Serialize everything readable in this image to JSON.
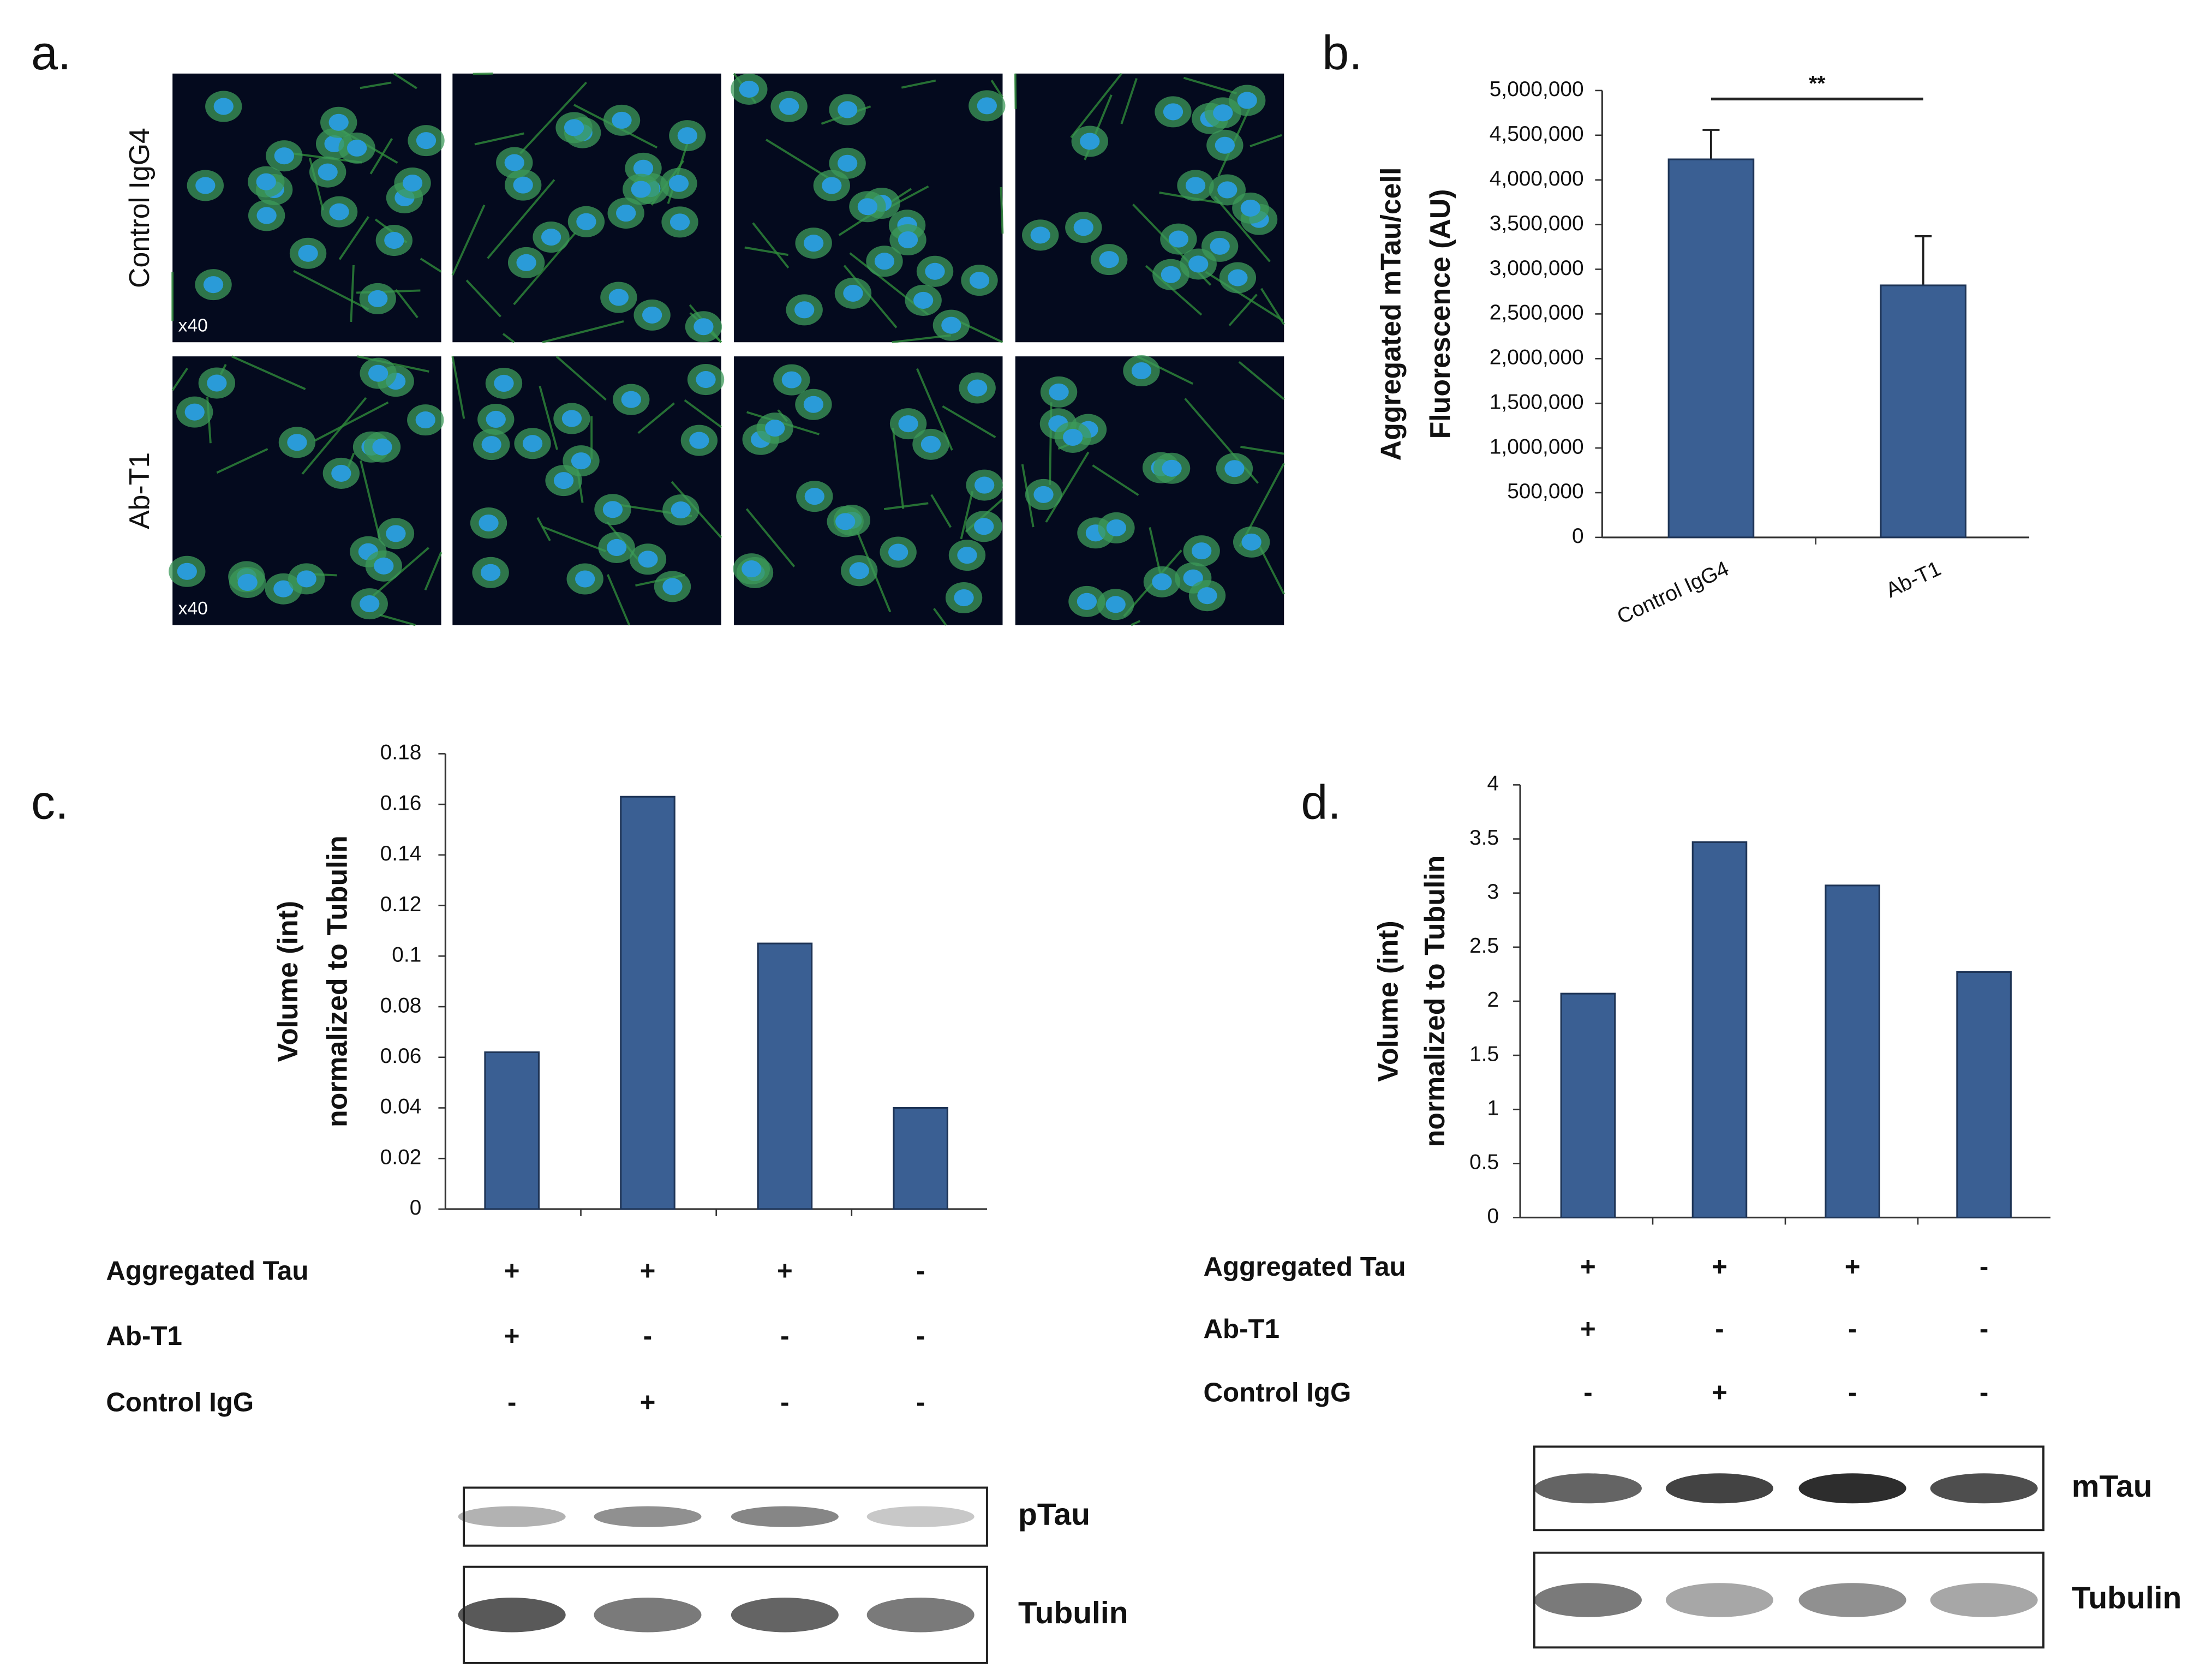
{
  "panel_labels": [
    "a.",
    "b.",
    "c.",
    "d."
  ],
  "microscopy": {
    "rows": [
      "Control IgG4",
      "Ab-T1"
    ],
    "magnification": [
      "x40",
      "x40"
    ]
  },
  "chart_data": [
    {
      "type": "bar",
      "ylabel": [
        "Aggregated mTau/cell",
        "Fluorescence (AU)"
      ],
      "categories": [
        "Control IgG4",
        "Ab-T1"
      ],
      "values": [
        4230000,
        2820000
      ],
      "errors": [
        330000,
        550000
      ],
      "color": "#3a5f93",
      "annotations": [
        "**"
      ],
      "ylim": [
        0,
        5000000
      ],
      "yticks": [
        0,
        {
          "value": 500000,
          "label": "500,000"
        },
        {
          "value": 1000000,
          "label": "1,000,000"
        },
        {
          "value": 1500000,
          "label": "1,500,000"
        },
        {
          "value": 2000000,
          "label": "2,000,000"
        },
        {
          "value": 2500000,
          "label": "2,500,000"
        },
        {
          "value": 3000000,
          "label": "3,000,000"
        },
        {
          "value": 3500000,
          "label": "3,500,000"
        },
        {
          "value": 4000000,
          "label": "4,000,000"
        },
        {
          "value": 4500000,
          "label": "4,500,000"
        },
        {
          "value": 5000000,
          "label": "5,000,000"
        }
      ]
    },
    {
      "type": "bar",
      "ylabel": [
        "Volume (int)",
        "normalized to Tubulin"
      ],
      "values": [
        0.062,
        0.163,
        0.105,
        0.04
      ],
      "color": "#3a5f93",
      "ylim": [
        0,
        0.18
      ],
      "yticks": [
        0,
        0.02,
        0.04,
        0.06,
        0.08,
        0.1,
        0.12,
        0.14,
        0.16,
        0.18
      ]
    },
    {
      "type": "bar",
      "ylabel": [
        "Volume (int)",
        "normalized to Tubulin"
      ],
      "values": [
        2.07,
        3.47,
        3.07,
        2.27
      ],
      "color": "#3a5f93",
      "ylim": [
        0,
        4
      ],
      "yticks": [
        0,
        0.5,
        1,
        1.5,
        2,
        2.5,
        3,
        3.5,
        4
      ]
    }
  ],
  "conditions": [
    [
      {
        "label": "Aggregated Tau",
        "signs": [
          "+",
          "+",
          "+",
          "-"
        ]
      },
      {
        "label": "Ab-T1",
        "signs": [
          "+",
          "-",
          "-",
          "-"
        ]
      },
      {
        "label": "Control IgG",
        "signs": [
          "-",
          "+",
          "-",
          "-"
        ]
      }
    ],
    [
      {
        "label": "Aggregated Tau",
        "signs": [
          "+",
          "+",
          "+",
          "-"
        ]
      },
      {
        "label": "Ab-T1",
        "signs": [
          "+",
          "-",
          "-",
          "-"
        ]
      },
      {
        "label": "Control IgG",
        "signs": [
          "-",
          "+",
          "-",
          "-"
        ]
      }
    ]
  ],
  "blots": [
    [
      "pTau",
      "Tubulin"
    ],
    [
      "mTau",
      "Tubulin"
    ]
  ]
}
